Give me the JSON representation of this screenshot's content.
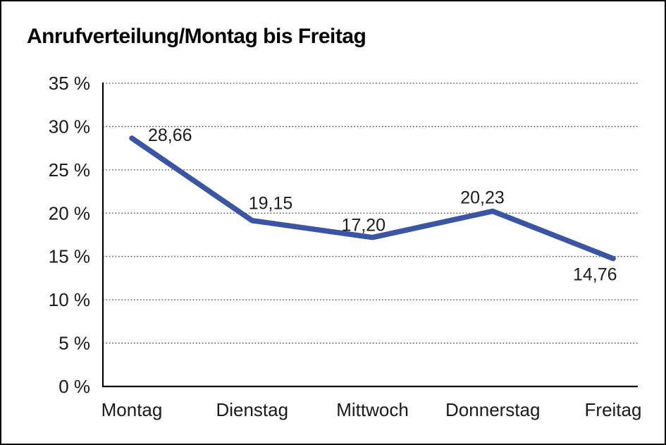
{
  "page": {
    "title": "Anrufverteilung/Montag bis Freitag"
  },
  "chart_data": {
    "type": "line",
    "title": "Anrufverteilung/Montag bis Freitag",
    "categories": [
      "Montag",
      "Dienstag",
      "Mittwoch",
      "Donnerstag",
      "Freitag"
    ],
    "series": [
      {
        "name": "Anrufverteilung",
        "values": [
          28.66,
          19.15,
          17.2,
          20.23,
          14.76
        ],
        "point_labels": [
          "28,66",
          "19,15",
          "17,20",
          "20,23",
          "14,76"
        ],
        "color": "#3A55A4"
      }
    ],
    "xlabel": "",
    "ylabel": "",
    "ylim": [
      0,
      35
    ],
    "ytick_values": [
      0,
      5,
      10,
      15,
      20,
      25,
      30,
      35
    ],
    "ytick_labels": [
      "0 %",
      "5 %",
      "10 %",
      "15 %",
      "20 %",
      "25 %",
      "30 %",
      "35 %"
    ],
    "grid": "horizontal-dotted",
    "legend": "none",
    "colors": {
      "line": "#3A55A4",
      "grid": "#3C3C3C",
      "axis": "#000000",
      "text": "#1A1A1A",
      "background": "#FFFFFF",
      "border": "#000000"
    }
  }
}
